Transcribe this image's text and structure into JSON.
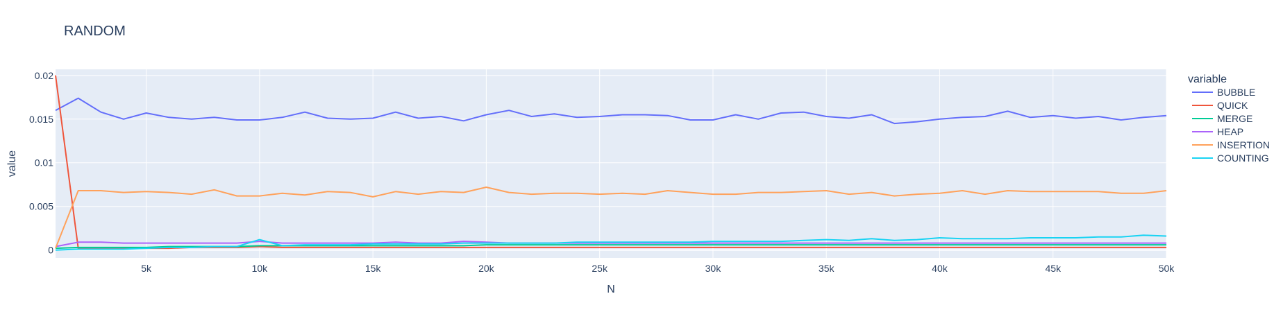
{
  "chart_data": {
    "type": "line",
    "title": "RANDOM",
    "xlabel": "N",
    "ylabel": "value",
    "xlim": [
      1000,
      50000
    ],
    "ylim": [
      -0.0009,
      0.0207
    ],
    "x_ticks": [
      5000,
      10000,
      15000,
      20000,
      25000,
      30000,
      35000,
      40000,
      45000,
      50000
    ],
    "x_tick_labels": [
      "5k",
      "10k",
      "15k",
      "20k",
      "25k",
      "30k",
      "35k",
      "40k",
      "45k",
      "50k"
    ],
    "y_ticks": [
      0,
      0.005,
      0.01,
      0.015,
      0.02
    ],
    "y_tick_labels": [
      "0",
      "0.005",
      "0.01",
      "0.015",
      "0.02"
    ],
    "grid": true,
    "legend_title": "variable",
    "legend_position": "right",
    "plot_background": "#e5ecf6",
    "x": [
      1000,
      2000,
      3000,
      4000,
      5000,
      6000,
      7000,
      8000,
      9000,
      10000,
      11000,
      12000,
      13000,
      14000,
      15000,
      16000,
      17000,
      18000,
      19000,
      20000,
      21000,
      22000,
      23000,
      24000,
      25000,
      26000,
      27000,
      28000,
      29000,
      30000,
      31000,
      32000,
      33000,
      34000,
      35000,
      36000,
      37000,
      38000,
      39000,
      40000,
      41000,
      42000,
      43000,
      44000,
      45000,
      46000,
      47000,
      48000,
      49000,
      50000
    ],
    "series": [
      {
        "name": "BUBBLE",
        "color": "#636efa",
        "values": [
          0.016,
          0.0174,
          0.0158,
          0.015,
          0.0157,
          0.0152,
          0.015,
          0.0152,
          0.0149,
          0.0149,
          0.0152,
          0.0158,
          0.0151,
          0.015,
          0.0151,
          0.0158,
          0.0151,
          0.0153,
          0.0148,
          0.0155,
          0.016,
          0.0153,
          0.0156,
          0.0152,
          0.0153,
          0.0155,
          0.0155,
          0.0154,
          0.0149,
          0.0149,
          0.0155,
          0.015,
          0.0157,
          0.0158,
          0.0153,
          0.0151,
          0.0155,
          0.0145,
          0.0147,
          0.015,
          0.0152,
          0.0153,
          0.0159,
          0.0152,
          0.0154,
          0.0151,
          0.0153,
          0.0149,
          0.0152,
          0.0154
        ]
      },
      {
        "name": "QUICK",
        "color": "#ef553b",
        "values": [
          0.02,
          0.0002,
          0.0002,
          0.0002,
          0.0002,
          0.0002,
          0.0003,
          0.0003,
          0.0003,
          0.0004,
          0.0003,
          0.0003,
          0.0003,
          0.0003,
          0.0003,
          0.0003,
          0.0003,
          0.0003,
          0.0003,
          0.0003,
          0.0003,
          0.0003,
          0.0003,
          0.0003,
          0.0003,
          0.0003,
          0.0003,
          0.0003,
          0.0003,
          0.0003,
          0.0003,
          0.0003,
          0.0003,
          0.0003,
          0.0003,
          0.0003,
          0.0003,
          0.0003,
          0.0003,
          0.0003,
          0.0003,
          0.0003,
          0.0003,
          0.0003,
          0.0003,
          0.0003,
          0.0003,
          0.0003,
          0.0003,
          0.0003
        ]
      },
      {
        "name": "MERGE",
        "color": "#00cc96",
        "values": [
          0.0002,
          0.0003,
          0.0003,
          0.0003,
          0.0003,
          0.0004,
          0.0004,
          0.0004,
          0.0004,
          0.0005,
          0.0005,
          0.0005,
          0.0005,
          0.0005,
          0.0005,
          0.0005,
          0.0005,
          0.0005,
          0.0005,
          0.0006,
          0.0006,
          0.0006,
          0.0006,
          0.0006,
          0.0006,
          0.0006,
          0.0006,
          0.0006,
          0.0006,
          0.0006,
          0.0006,
          0.0006,
          0.0006,
          0.0006,
          0.0006,
          0.0006,
          0.0006,
          0.0006,
          0.0006,
          0.0006,
          0.0006,
          0.0006,
          0.0006,
          0.0006,
          0.0006,
          0.0006,
          0.0006,
          0.0006,
          0.0006,
          0.0006
        ]
      },
      {
        "name": "HEAP",
        "color": "#ab63fa",
        "values": [
          0.0004,
          0.0009,
          0.0009,
          0.0008,
          0.0008,
          0.0008,
          0.0008,
          0.0008,
          0.0008,
          0.001,
          0.0008,
          0.0008,
          0.0008,
          0.0008,
          0.0008,
          0.0009,
          0.0008,
          0.0008,
          0.001,
          0.0009,
          0.0008,
          0.0008,
          0.0008,
          0.0008,
          0.0008,
          0.0008,
          0.0008,
          0.0008,
          0.0008,
          0.0008,
          0.0008,
          0.0008,
          0.0008,
          0.0008,
          0.0008,
          0.0008,
          0.0008,
          0.0008,
          0.0008,
          0.0008,
          0.0008,
          0.0008,
          0.0008,
          0.0008,
          0.0008,
          0.0008,
          0.0008,
          0.0008,
          0.0008,
          0.0008
        ]
      },
      {
        "name": "INSERTION",
        "color": "#ffa15a",
        "values": [
          0.0002,
          0.0068,
          0.0068,
          0.0066,
          0.0067,
          0.0066,
          0.0064,
          0.0069,
          0.0062,
          0.0062,
          0.0065,
          0.0063,
          0.0067,
          0.0066,
          0.0061,
          0.0067,
          0.0064,
          0.0067,
          0.0066,
          0.0072,
          0.0066,
          0.0064,
          0.0065,
          0.0065,
          0.0064,
          0.0065,
          0.0064,
          0.0068,
          0.0066,
          0.0064,
          0.0064,
          0.0066,
          0.0066,
          0.0067,
          0.0068,
          0.0064,
          0.0066,
          0.0062,
          0.0064,
          0.0065,
          0.0068,
          0.0064,
          0.0068,
          0.0067,
          0.0067,
          0.0067,
          0.0067,
          0.0065,
          0.0065,
          0.0068
        ]
      },
      {
        "name": "COUNTING",
        "color": "#19d3f3",
        "values": [
          0.0,
          0.0001,
          0.0001,
          0.0001,
          0.0002,
          0.0003,
          0.0003,
          0.0004,
          0.0004,
          0.0012,
          0.0005,
          0.0006,
          0.0006,
          0.0006,
          0.0007,
          0.0007,
          0.0007,
          0.0007,
          0.0008,
          0.0008,
          0.0008,
          0.0008,
          0.0008,
          0.0009,
          0.0009,
          0.0009,
          0.0009,
          0.0009,
          0.0009,
          0.001,
          0.001,
          0.001,
          0.001,
          0.0011,
          0.0012,
          0.0011,
          0.0013,
          0.0011,
          0.0012,
          0.0014,
          0.0013,
          0.0013,
          0.0013,
          0.0014,
          0.0014,
          0.0014,
          0.0015,
          0.0015,
          0.0017,
          0.0016
        ]
      }
    ]
  }
}
